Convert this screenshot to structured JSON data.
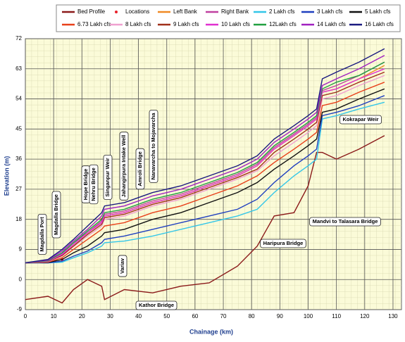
{
  "chart_data": {
    "type": "line",
    "xlabel": "Chainage (km)",
    "ylabel": "Elevation (m)",
    "xlim": [
      0,
      133
    ],
    "xticks": [
      0,
      10,
      20,
      30,
      40,
      50,
      60,
      70,
      80,
      90,
      100,
      110,
      120,
      130
    ],
    "ylim": [
      -9,
      72
    ],
    "yticks": [
      -9,
      0,
      9,
      18,
      27,
      36,
      45,
      54,
      63,
      72
    ],
    "grid": true,
    "x": [
      0,
      8,
      13,
      17,
      22,
      27,
      28,
      35,
      45,
      55,
      65,
      75,
      82,
      88,
      95,
      100,
      103,
      105,
      110,
      118,
      127
    ],
    "series": [
      {
        "name": "Bed Profile",
        "color": "#8b1a1a",
        "values": [
          -6,
          -5,
          -7,
          -3,
          0,
          -2,
          -6,
          -3,
          -4,
          -2,
          -1,
          4,
          10,
          19,
          20,
          28,
          38,
          38,
          36,
          39,
          43
        ]
      },
      {
        "name": "Locations",
        "color": "#e8202a",
        "marker": true,
        "values": [
          null,
          null,
          6,
          null,
          null,
          18,
          null,
          null,
          null,
          null,
          null,
          null,
          null,
          null,
          null,
          null,
          null,
          null,
          null,
          null,
          null
        ]
      },
      {
        "name": "Left Bank",
        "color": "#f08a24",
        "values": [
          5,
          5.5,
          8,
          11,
          14,
          17,
          19,
          20,
          23,
          25,
          28,
          31,
          34,
          39,
          43,
          46,
          48,
          56,
          57,
          60,
          64
        ]
      },
      {
        "name": "Right Bank",
        "color": "#c040a0",
        "values": [
          5,
          5.5,
          7.8,
          11,
          14,
          17.5,
          19.5,
          20.5,
          23.5,
          25.5,
          28.5,
          31.5,
          34.5,
          39.5,
          43.5,
          46.5,
          48.5,
          56.5,
          58,
          61,
          65
        ]
      },
      {
        "name": "2 Lakh cfs",
        "color": "#33c6e8",
        "values": [
          5,
          5,
          5.2,
          6.5,
          8,
          10,
          11,
          11.5,
          13,
          15,
          17,
          19,
          21,
          26,
          31,
          34,
          36,
          48,
          49,
          51,
          53
        ]
      },
      {
        "name": "3 Lakh cfs",
        "color": "#1f3fbf",
        "values": [
          5,
          5,
          5.5,
          7,
          8.5,
          11,
          12,
          13,
          15,
          17,
          19,
          21,
          24,
          29,
          34,
          37,
          39,
          49,
          50,
          52,
          55
        ]
      },
      {
        "name": "5 Lakh cfs",
        "color": "#111111",
        "values": [
          5,
          5.1,
          6,
          8,
          10,
          13,
          14,
          15,
          18,
          20,
          23,
          26,
          29,
          33,
          37,
          40,
          42,
          50,
          51,
          54,
          57
        ]
      },
      {
        "name": "6.73 Lakh cfs",
        "color": "#e8401a",
        "values": [
          5,
          5.2,
          6.5,
          9,
          12,
          15,
          16,
          17,
          20,
          22,
          25,
          28,
          31,
          35,
          39,
          42,
          44,
          52,
          53,
          56,
          59
        ]
      },
      {
        "name": "8 Lakh cfs",
        "color": "#f0a0d0",
        "values": [
          5,
          5.3,
          7,
          9.8,
          13,
          16,
          18,
          19,
          22,
          24,
          27,
          30,
          32.5,
          37,
          41,
          44,
          46,
          54,
          55,
          58,
          61
        ]
      },
      {
        "name": "9 Lakh cfs",
        "color": "#a0301a",
        "values": [
          5,
          5.4,
          7.2,
          10,
          13.5,
          16.5,
          18.5,
          19.5,
          22.5,
          24.5,
          27.5,
          30.5,
          33,
          38,
          42,
          45,
          47,
          55,
          56,
          59,
          62
        ]
      },
      {
        "name": "10 Lakh cfs",
        "color": "#e030d0",
        "values": [
          5,
          5.5,
          7.5,
          10.5,
          14,
          17,
          19,
          20,
          23,
          25,
          28,
          31,
          34,
          39,
          43,
          46,
          48,
          56,
          57,
          60,
          63
        ]
      },
      {
        "name": "12Lakh cfs",
        "color": "#20a040",
        "values": [
          5,
          5.6,
          8,
          11,
          14.5,
          18,
          20,
          21,
          24,
          26,
          29,
          32,
          35,
          40,
          44,
          47,
          49,
          57,
          59,
          61,
          65
        ]
      },
      {
        "name": "14 Lakh cfs",
        "color": "#a020c0",
        "values": [
          5,
          5.8,
          8.5,
          11.5,
          15,
          19,
          21,
          22,
          25,
          27,
          30,
          33,
          36,
          41,
          45,
          48,
          50,
          58,
          60,
          63,
          67
        ]
      },
      {
        "name": "16 Lakh cfs",
        "color": "#1a1a80",
        "values": [
          5,
          6,
          9,
          12,
          16,
          20,
          22,
          23,
          26,
          28,
          31,
          34,
          37,
          42,
          46,
          49,
          51,
          60,
          62,
          65,
          69
        ]
      }
    ],
    "annotations": [
      "Magdalla Port",
      "Magdalla Bridge",
      "Hope Bridge",
      "Nehru Bridge",
      "Singanpur Weir",
      "Jahangirpura Intake Well",
      "Amroli Bridge",
      "Nanavarcha to Mojavarcha",
      "Variav",
      "Kathor Bridge",
      "Haripura Bridge",
      "Mandvi to Talasara Bridge",
      "Kokrapar Weir"
    ]
  }
}
